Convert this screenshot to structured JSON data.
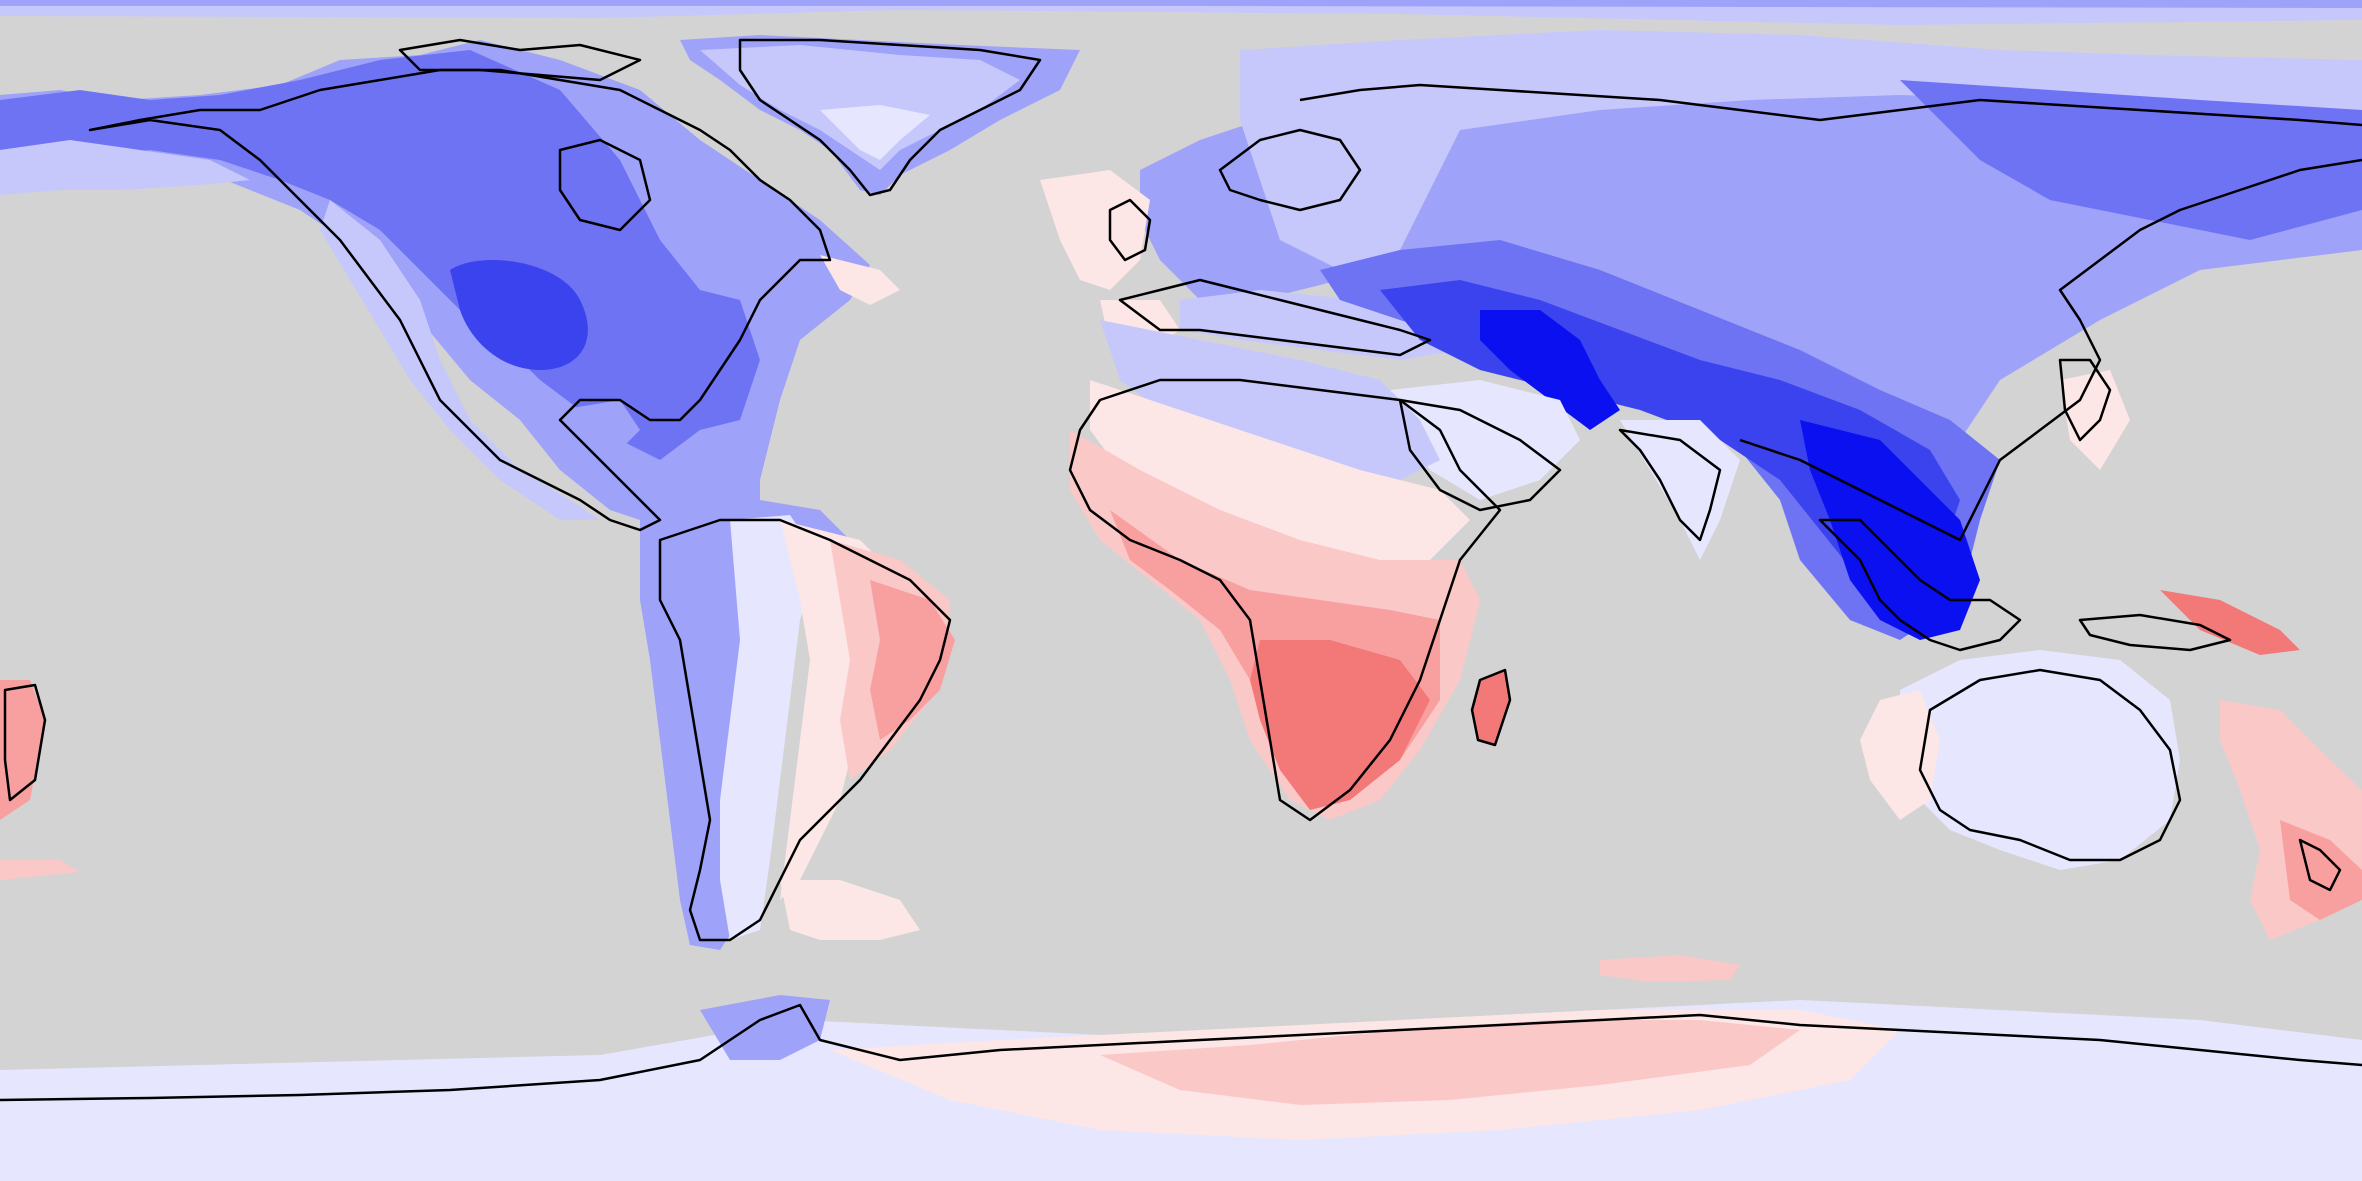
{
  "map": {
    "projection": "equirectangular",
    "extent": {
      "lon": [
        -180,
        180
      ],
      "lat": [
        -90,
        90
      ]
    },
    "ocean_mask_color": "#d3d3d3",
    "coastline_color": "#000000",
    "colors": {
      "blue_strong": "#0a10f0",
      "blue_dark": "#3b43ee",
      "blue_mid": "#6e73f4",
      "blue_light": "#9ea2f9",
      "blue_pale": "#c6c8fc",
      "blue_faint": "#e6e7fe",
      "red_faint": "#fde6e6",
      "red_pale": "#fbc8c8",
      "red_light": "#f8a0a0",
      "red_mid": "#f37878",
      "red_dark": "#ef5e5e"
    }
  }
}
